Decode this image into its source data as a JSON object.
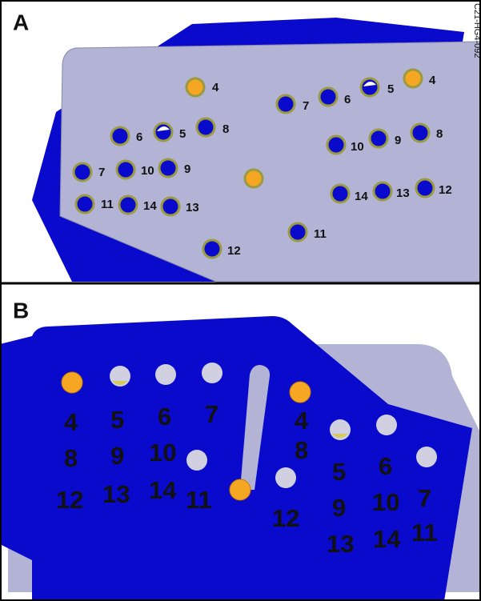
{
  "panel_a": {
    "label": "A",
    "code": "C21-HG4-092",
    "hole_labels": [
      "4",
      "6",
      "5",
      "8",
      "7",
      "10",
      "9",
      "11",
      "14",
      "13",
      "12",
      "7",
      "6",
      "5",
      "4",
      "10",
      "9",
      "8",
      "14",
      "13",
      "12",
      "11"
    ]
  },
  "panel_b": {
    "label": "B",
    "hole_labels": [
      "4",
      "5",
      "6",
      "7",
      "8",
      "9",
      "10",
      "12",
      "13",
      "14",
      "11",
      "4",
      "8",
      "5",
      "6",
      "9",
      "10",
      "7",
      "12",
      "13",
      "14",
      "11"
    ]
  }
}
